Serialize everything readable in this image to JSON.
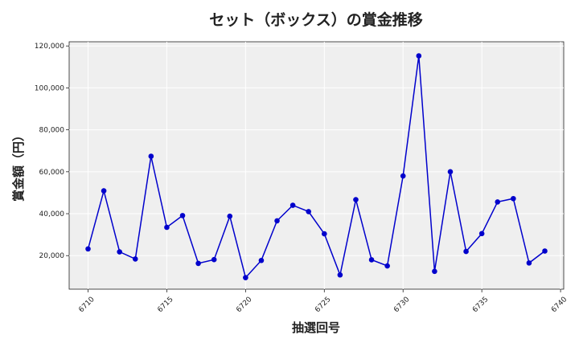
{
  "chart_data": {
    "type": "line",
    "title": "セット（ボックス）の賞金推移",
    "xlabel": "抽選回号",
    "ylabel": "賞金額（円）",
    "xlim": [
      6708.8,
      6740.2
    ],
    "ylim": [
      4000,
      122000
    ],
    "xticks": [
      6710,
      6715,
      6720,
      6725,
      6730,
      6735,
      6740
    ],
    "yticks": [
      20000,
      40000,
      60000,
      80000,
      100000,
      120000
    ],
    "ytick_labels": [
      "20,000",
      "40,000",
      "60,000",
      "80,000",
      "100,000",
      "120,000"
    ],
    "grid": true,
    "series": [
      {
        "color": "#0000cc",
        "x": [
          6710,
          6711,
          6712,
          6713,
          6714,
          6715,
          6716,
          6717,
          6718,
          6719,
          6720,
          6721,
          6722,
          6723,
          6724,
          6725,
          6726,
          6727,
          6728,
          6729,
          6730,
          6731,
          6732,
          6733,
          6734,
          6735,
          6736,
          6737,
          6738,
          6739
        ],
        "y": [
          23200,
          50900,
          21800,
          18400,
          67400,
          33500,
          39100,
          16300,
          18100,
          38800,
          9500,
          17700,
          36600,
          44000,
          41000,
          30400,
          10800,
          46700,
          18000,
          15100,
          58000,
          115300,
          12500,
          60000,
          22000,
          30500,
          45600,
          47200,
          16500,
          22200
        ]
      }
    ]
  }
}
